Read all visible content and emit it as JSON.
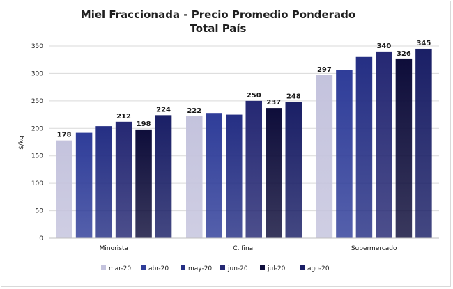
{
  "chart_data": {
    "type": "bar",
    "title": "Miel Fraccionada - Precio Promedio Ponderado",
    "subtitle": "Total País",
    "xlabel": "",
    "ylabel": "$/kg",
    "ylim": [
      0,
      350
    ],
    "yticks": [
      0,
      50,
      100,
      150,
      200,
      250,
      300,
      350
    ],
    "grid": true,
    "legend_position": "bottom",
    "categories": [
      "Minorista",
      "C. final",
      "Supermercado"
    ],
    "series": [
      {
        "name": "mar-20",
        "color": "#c4c3dd",
        "values": [
          178,
          222,
          297
        ],
        "labels": [
          "178",
          "222",
          "297"
        ]
      },
      {
        "name": "abr-20",
        "color": "#2f3d99",
        "values": [
          192,
          228,
          306
        ],
        "labels": [
          "",
          "",
          ""
        ]
      },
      {
        "name": "may-20",
        "color": "#252f84",
        "values": [
          204,
          225,
          330
        ],
        "labels": [
          "",
          "",
          ""
        ]
      },
      {
        "name": "jun-20",
        "color": "#252873",
        "values": [
          212,
          250,
          340
        ],
        "labels": [
          "212",
          "250",
          "340"
        ]
      },
      {
        "name": "jul-20",
        "color": "#0e0d3a",
        "values": [
          198,
          237,
          326
        ],
        "labels": [
          "198",
          "237",
          "326"
        ]
      },
      {
        "name": "ago-20",
        "color": "#1a1f66",
        "values": [
          224,
          248,
          345
        ],
        "labels": [
          "224",
          "248",
          "345"
        ]
      }
    ]
  }
}
